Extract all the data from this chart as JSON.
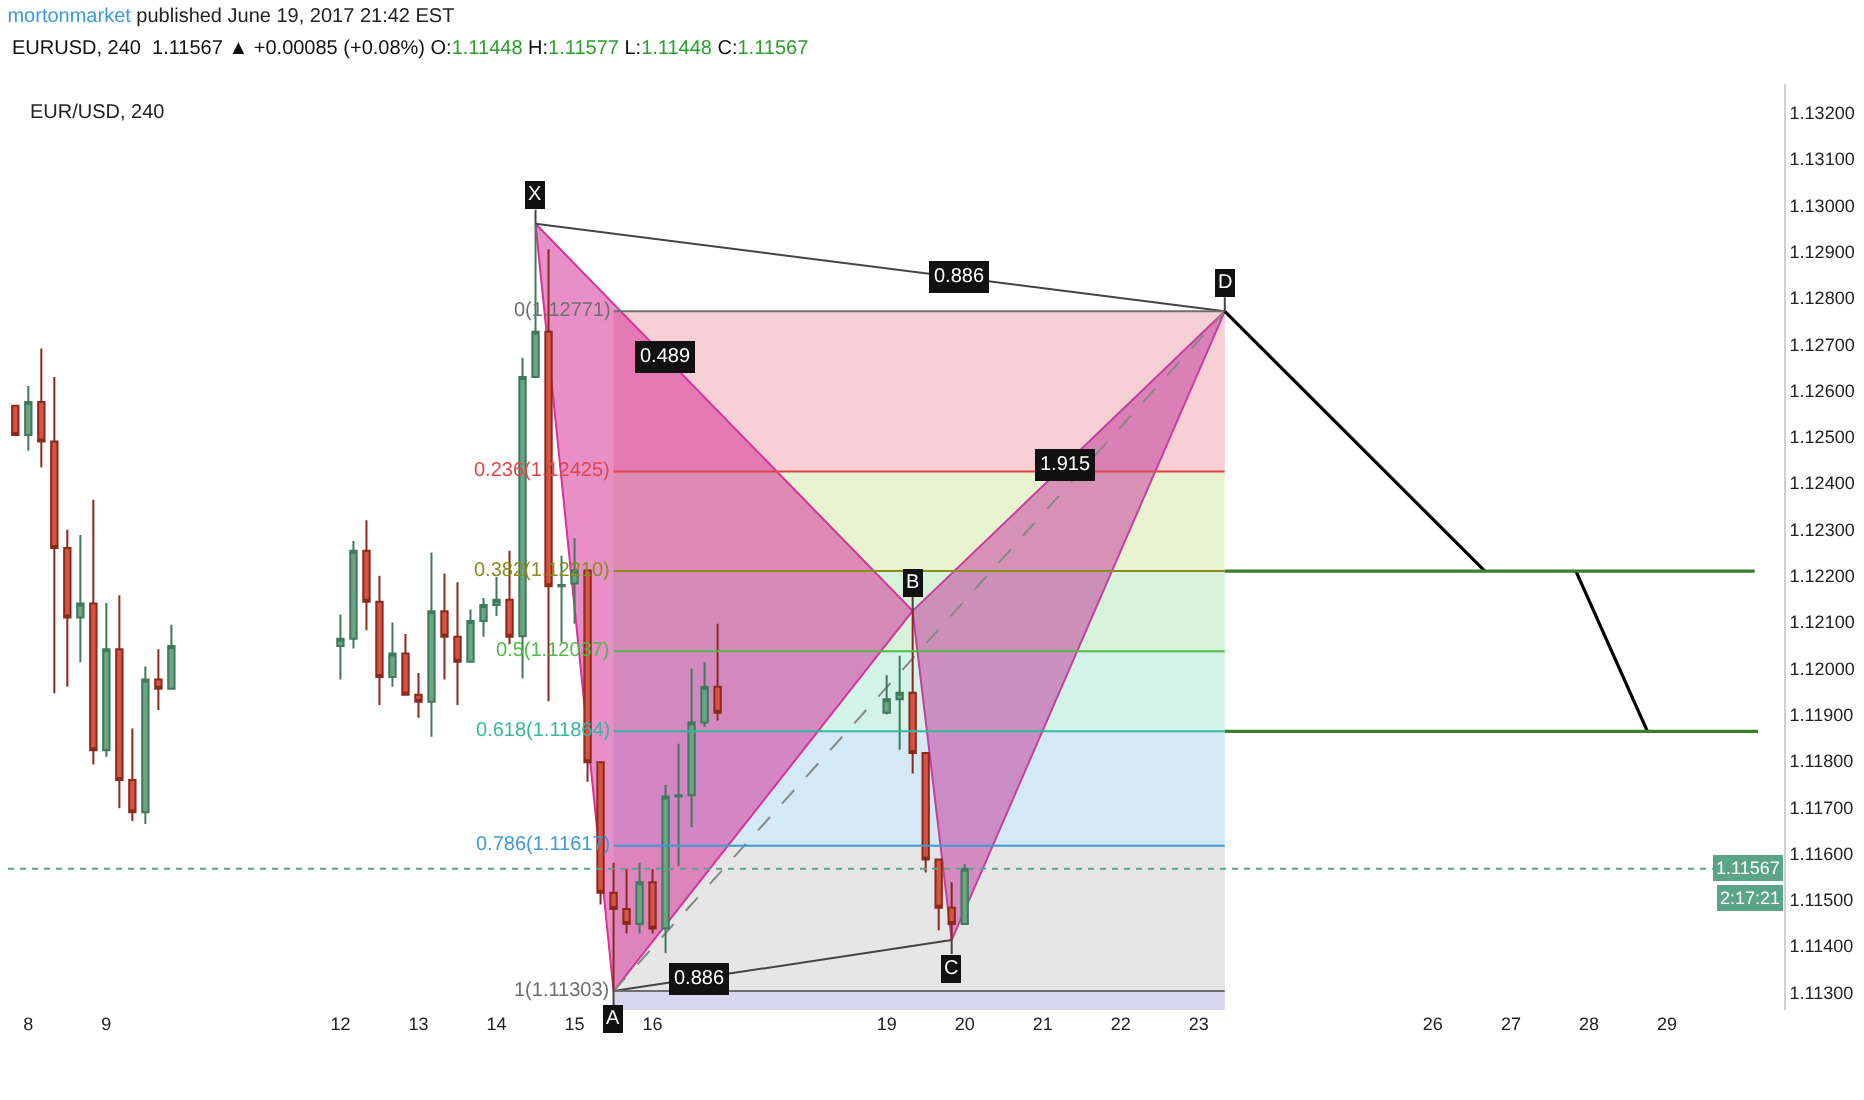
{
  "chart_data": {
    "type": "candlestick",
    "title": "mortonmarket published June 19, 2017 21:42 EST",
    "subtitle": "EURUSD, 240  1.11567 ▲ +0.00085 (+0.08%) O:1.11448 H:1.11577 L:1.11448 C:1.11567",
    "x": [
      "2017-06-07T20:00",
      "2017-06-08T00:00",
      "2017-06-08T04:00",
      "2017-06-08T08:00",
      "2017-06-08T12:00",
      "2017-06-08T16:00",
      "2017-06-08T20:00",
      "2017-06-09T00:00",
      "2017-06-09T04:00",
      "2017-06-09T08:00",
      "2017-06-09T12:00",
      "2017-06-09T16:00",
      "2017-06-09T20:00",
      "2017-06-12T00:00",
      "2017-06-12T04:00",
      "2017-06-12T08:00",
      "2017-06-12T12:00",
      "2017-06-12T16:00",
      "2017-06-12T20:00",
      "2017-06-13T00:00",
      "2017-06-13T04:00",
      "2017-06-13T08:00",
      "2017-06-13T12:00",
      "2017-06-13T16:00",
      "2017-06-13T20:00",
      "2017-06-14T00:00",
      "2017-06-14T04:00",
      "2017-06-14T08:00",
      "2017-06-14T12:00",
      "2017-06-14T16:00",
      "2017-06-14T20:00",
      "2017-06-15T00:00",
      "2017-06-15T04:00",
      "2017-06-15T08:00",
      "2017-06-15T12:00",
      "2017-06-15T16:00",
      "2017-06-15T20:00",
      "2017-06-16T00:00",
      "2017-06-16T04:00",
      "2017-06-16T08:00",
      "2017-06-16T12:00",
      "2017-06-16T16:00",
      "2017-06-16T20:00",
      "2017-06-19T00:00",
      "2017-06-19T04:00",
      "2017-06-19T08:00",
      "2017-06-19T12:00",
      "2017-06-19T16:00",
      "2017-06-19T20:00",
      "2017-06-20T00:00"
    ],
    "ohlc": [
      [
        1.12567,
        1.12567,
        1.12504,
        1.12504
      ],
      [
        1.12504,
        1.1261,
        1.1247,
        1.12575
      ],
      [
        1.12575,
        1.12691,
        1.12434,
        1.1249
      ],
      [
        1.1249,
        1.12629,
        1.11946,
        1.1226
      ],
      [
        1.1226,
        1.12299,
        1.1196,
        1.1211
      ],
      [
        1.1211,
        1.12288,
        1.12013,
        1.1214
      ],
      [
        1.1214,
        1.12364,
        1.11792,
        1.11823
      ],
      [
        1.11823,
        1.12141,
        1.11809,
        1.12041
      ],
      [
        1.12041,
        1.12158,
        1.11698,
        1.11759
      ],
      [
        1.11759,
        1.1187,
        1.1167,
        1.11689
      ],
      [
        1.11689,
        1.12004,
        1.11664,
        1.11976
      ],
      [
        1.11976,
        1.12041,
        1.1191,
        1.11956
      ],
      [
        1.11956,
        1.12094,
        1.11956,
        1.12048
      ],
      [
        1.12048,
        1.12116,
        1.11976,
        1.12064
      ],
      [
        1.12064,
        1.12275,
        1.12043,
        1.12254
      ],
      [
        1.12254,
        1.1232,
        1.12082,
        1.12144
      ],
      [
        1.12144,
        1.122,
        1.11921,
        1.11981
      ],
      [
        1.11981,
        1.12099,
        1.1196,
        1.12032
      ],
      [
        1.12032,
        1.12074,
        1.11943,
        1.11943
      ],
      [
        1.11943,
        1.1199,
        1.11893,
        1.11928
      ],
      [
        1.11928,
        1.1225,
        1.11852,
        1.12123
      ],
      [
        1.12123,
        1.12205,
        1.11976,
        1.12068
      ],
      [
        1.12068,
        1.12186,
        1.11921,
        1.12014
      ],
      [
        1.12014,
        1.12127,
        1.12014,
        1.12102
      ],
      [
        1.12102,
        1.12152,
        1.12068,
        1.12137
      ],
      [
        1.12137,
        1.12197,
        1.12113,
        1.12148
      ],
      [
        1.12148,
        1.12254,
        1.12052,
        1.12068
      ],
      [
        1.12069,
        1.12671,
        1.11978,
        1.12629
      ],
      [
        1.12629,
        1.1296,
        1.12629,
        1.12727
      ],
      [
        1.12727,
        1.12905,
        1.11929,
        1.12177
      ],
      [
        1.12177,
        1.12243,
        1.12055,
        1.1218
      ],
      [
        1.12183,
        1.12281,
        1.12096,
        1.12211
      ],
      [
        1.12211,
        1.12211,
        1.11755,
        1.11797
      ],
      [
        1.11797,
        1.11797,
        1.1149,
        1.11515
      ],
      [
        1.11515,
        1.1158,
        1.11303,
        1.1148
      ],
      [
        1.1148,
        1.11566,
        1.11427,
        1.11448
      ],
      [
        1.11448,
        1.1158,
        1.11427,
        1.11538
      ],
      [
        1.11538,
        1.11566,
        1.11427,
        1.11438
      ],
      [
        1.11438,
        1.11748,
        1.11385,
        1.11723
      ],
      [
        1.11723,
        1.11837,
        1.11573,
        1.11726
      ],
      [
        1.11726,
        1.11999,
        1.11657,
        1.11883
      ],
      [
        1.11883,
        1.12013,
        1.11873,
        1.1196
      ],
      [
        1.1196,
        1.12096,
        1.11887,
        1.11904
      ],
      [
        1.11904,
        1.11985,
        1.119,
        1.11933
      ],
      [
        1.11933,
        1.12027,
        1.11824,
        1.11947
      ],
      [
        1.11947,
        1.12124,
        1.11773,
        1.11817
      ],
      [
        1.11817,
        1.11817,
        1.11559,
        1.11587
      ],
      [
        1.11587,
        1.11587,
        1.11434,
        1.11483
      ],
      [
        1.11483,
        1.11538,
        1.11413,
        1.11448
      ],
      [
        1.11448,
        1.11577,
        1.11448,
        1.11567
      ]
    ],
    "series": [
      {
        "type": "area",
        "color": "#d6339b",
        "x": [
          "2017-06-14T12:00",
          "2017-06-15T12:00",
          "2017-06-19T08:00",
          "2017-06-14T12:00"
        ],
        "values": [
          1.1296,
          1.11303,
          1.12124,
          1.1296
        ]
      },
      {
        "type": "area",
        "color": "#c4409f",
        "x": [
          "2017-06-19T08:00",
          "2017-06-19T20:00",
          "2017-06-23T08:00",
          "2017-06-19T08:00"
        ],
        "values": [
          1.12124,
          1.11413,
          1.12771,
          1.12124
        ]
      },
      {
        "type": "line",
        "color": "#444444",
        "x": [
          "2017-06-14T12:00",
          "2017-06-23T08:00"
        ],
        "values": [
          1.1296,
          1.12771
        ]
      },
      {
        "type": "line",
        "color": "#444444",
        "x": [
          "2017-06-15T12:00",
          "2017-06-19T20:00"
        ],
        "values": [
          1.11303,
          1.11413
        ]
      },
      {
        "type": "line",
        "color": "#888888",
        "line_style": "dashed",
        "x": [
          "2017-06-15T12:00",
          "2017-06-23T08:00"
        ],
        "values": [
          1.11303,
          1.12771
        ]
      },
      {
        "type": "line",
        "color": "#000000",
        "x": [
          "2017-06-23T08:00",
          "2017-06-26T16:00"
        ],
        "values": [
          1.12771,
          1.1221
        ]
      },
      {
        "type": "line",
        "color": "#000000",
        "x": [
          "2017-06-27T20:00",
          "2017-06-28T18:00"
        ],
        "values": [
          1.1221,
          1.11864
        ]
      },
      {
        "type": "line",
        "color": "#3a7d2a",
        "x": [
          "2017-06-23T08:00",
          "2017-06-30T03:00"
        ],
        "values": [
          1.1221,
          1.1221
        ]
      },
      {
        "type": "line",
        "color": "#3a7d2a",
        "x": [
          "2017-06-23T08:00",
          "2017-06-30T04:00"
        ],
        "values": [
          1.11864,
          1.11864
        ]
      }
    ],
    "bands": [
      {
        "axis": "y",
        "from": 1.12425,
        "to": 1.12771,
        "color": "#f5cfd3"
      },
      {
        "axis": "y",
        "from": 1.1221,
        "to": 1.12425,
        "color": "#eaf3cf"
      },
      {
        "axis": "y",
        "from": 1.12037,
        "to": 1.1221,
        "color": "#d6f2d8"
      },
      {
        "axis": "y",
        "from": 1.11864,
        "to": 1.12037,
        "color": "#d3f2e8"
      },
      {
        "axis": "y",
        "from": 1.11617,
        "to": 1.11864,
        "color": "#d3e9f6"
      },
      {
        "axis": "y",
        "from": 1.11303,
        "to": 1.11617,
        "color": "#e6e6e6"
      },
      {
        "axis": "y",
        "from": 1.11262,
        "to": 1.11303,
        "color": "#d9d6f2"
      }
    ],
    "ref_lines": [
      {
        "axis": "y",
        "value": 1.12771,
        "label": "0(1.12771)",
        "color": "#6f6f6f"
      },
      {
        "axis": "y",
        "value": 1.12425,
        "label": "0.236(1.12425)",
        "color": "#e0474c"
      },
      {
        "axis": "y",
        "value": 1.1221,
        "label": "0.382(1.12210)",
        "color": "#8a8c1e"
      },
      {
        "axis": "y",
        "value": 1.12037,
        "label": "0.5(1.12037)",
        "color": "#52b848"
      },
      {
        "axis": "y",
        "value": 1.11864,
        "label": "0.618(1.11864)",
        "color": "#33b8a0"
      },
      {
        "axis": "y",
        "value": 1.11617,
        "label": "0.786(1.11617)",
        "color": "#3d9ad6"
      },
      {
        "axis": "y",
        "value": 1.11303,
        "label": "1(1.11303)",
        "color": "#6f6f6f"
      },
      {
        "axis": "y",
        "value": 1.11567,
        "label": "1.11567",
        "color": "#5aa58a",
        "line_style": "dotted"
      }
    ],
    "annotations": [
      {
        "text": "X",
        "x": "2017-06-14T12:00",
        "y": 1.1296
      },
      {
        "text": "A",
        "x": "2017-06-15T12:00",
        "y": 1.11303
      },
      {
        "text": "B",
        "x": "2017-06-19T08:00",
        "y": 1.12124
      },
      {
        "text": "C",
        "x": "2017-06-19T20:00",
        "y": 1.11413
      },
      {
        "text": "D",
        "x": "2017-06-23T08:00",
        "y": 1.12771
      },
      {
        "text": "0.489",
        "x": "2017-06-16T04:00",
        "y": 1.12672
      },
      {
        "text": "0.886",
        "x": "2017-06-19T22:00",
        "y": 1.12844
      },
      {
        "text": "1.915",
        "x": "2017-06-21T07:00",
        "y": 1.12441
      },
      {
        "text": "0.886",
        "x": "2017-06-16T14:00",
        "y": 1.11331
      },
      "EUR/USD, 240",
      "2:17:21"
    ],
    "xlim": [
      "2017-06-07T17:45",
      "2017-06-30T12:00"
    ],
    "xticks": [
      {
        "value": "2017-06-08",
        "label": "8"
      },
      {
        "value": "2017-06-09",
        "label": "9"
      },
      {
        "value": "2017-06-12",
        "label": "12"
      },
      {
        "value": "2017-06-13",
        "label": "13"
      },
      {
        "value": "2017-06-14",
        "label": "14"
      },
      {
        "value": "2017-06-15",
        "label": "15"
      },
      {
        "value": "2017-06-16",
        "label": "16"
      },
      {
        "value": "2017-06-19",
        "label": "19"
      },
      {
        "value": "2017-06-20",
        "label": "20"
      },
      {
        "value": "2017-06-21",
        "label": "21"
      },
      {
        "value": "2017-06-22",
        "label": "22"
      },
      {
        "value": "2017-06-23",
        "label": "23"
      },
      {
        "value": "2017-06-26",
        "label": "26"
      },
      {
        "value": "2017-06-27",
        "label": "27"
      },
      {
        "value": "2017-06-28",
        "label": "28"
      },
      {
        "value": "2017-06-29",
        "label": "29"
      }
    ],
    "ylim": [
      1.11262,
      1.13262
    ],
    "yticks": [
      {
        "value": 1.113,
        "label": "1.11300"
      },
      {
        "value": 1.114,
        "label": "1.11400"
      },
      {
        "value": 1.115,
        "label": "1.11500"
      },
      {
        "value": 1.116,
        "label": "1.11600"
      },
      {
        "value": 1.117,
        "label": "1.11700"
      },
      {
        "value": 1.118,
        "label": "1.11800"
      },
      {
        "value": 1.119,
        "label": "1.11900"
      },
      {
        "value": 1.12,
        "label": "1.12000"
      },
      {
        "value": 1.121,
        "label": "1.12100"
      },
      {
        "value": 1.122,
        "label": "1.12200"
      },
      {
        "value": 1.123,
        "label": "1.12300"
      },
      {
        "value": 1.124,
        "label": "1.12400"
      },
      {
        "value": 1.125,
        "label": "1.12500"
      },
      {
        "value": 1.126,
        "label": "1.12600"
      },
      {
        "value": 1.127,
        "label": "1.12700"
      },
      {
        "value": 1.128,
        "label": "1.12800"
      },
      {
        "value": 1.129,
        "label": "1.12900"
      },
      {
        "value": 1.13,
        "label": "1.13000"
      },
      {
        "value": 1.131,
        "label": "1.13100"
      },
      {
        "value": 1.132,
        "label": "1.13200"
      }
    ]
  }
}
